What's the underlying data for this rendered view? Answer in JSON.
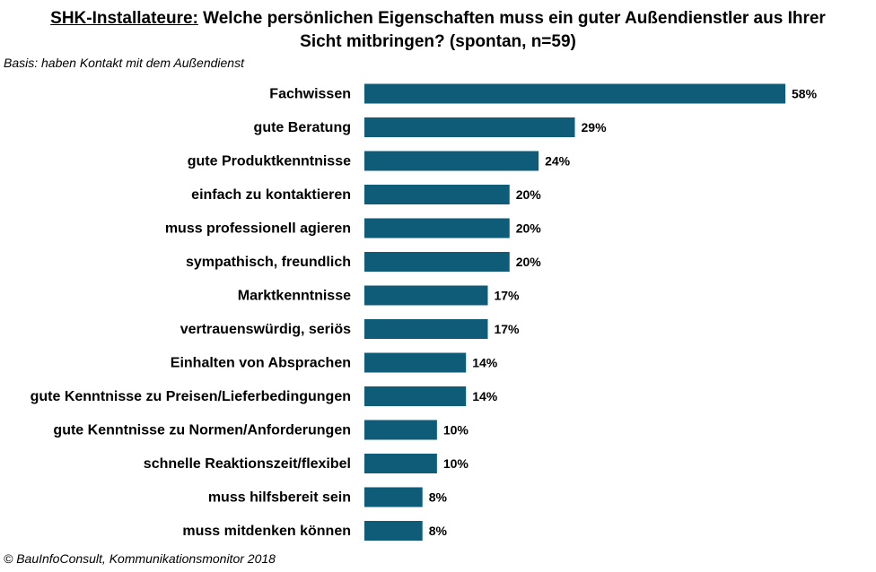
{
  "header": {
    "title_prefix": "SHK-Installateure:",
    "title_line1": " Welche persönlichen Eigenschaften muss ein guter Außendienstler aus Ihrer",
    "title_line2": "Sicht mitbringen?  (spontan, n=59)",
    "basis": "Basis: haben Kontakt mit dem Außendienst"
  },
  "footer": {
    "source": "© BauInfoConsult, Kommunikationsmonitor 2018"
  },
  "colors": {
    "bar": "#0e5c78"
  },
  "chart_data": {
    "type": "bar",
    "orientation": "horizontal",
    "categories": [
      "Fachwissen",
      "gute Beratung",
      "gute Produktkenntnisse",
      "einfach zu kontaktieren",
      "muss professionell agieren",
      "sympathisch, freundlich",
      "Marktkenntnisse",
      "vertrauenswürdig, seriös",
      "Einhalten von Absprachen",
      "gute Kenntnisse zu Preisen/Lieferbedingungen",
      "gute Kenntnisse zu Normen/Anforderungen",
      "schnelle Reaktionszeit/flexibel",
      "muss hilfsbereit sein",
      "muss mitdenken können"
    ],
    "values": [
      58,
      29,
      24,
      20,
      20,
      20,
      17,
      17,
      14,
      14,
      10,
      10,
      8,
      8
    ],
    "value_labels": [
      "58%",
      "29%",
      "24%",
      "20%",
      "20%",
      "20%",
      "17%",
      "17%",
      "14%",
      "14%",
      "10%",
      "10%",
      "8%",
      "8%"
    ],
    "unit": "%",
    "xlim": [
      0,
      58
    ],
    "grid": false,
    "legend": "none"
  }
}
